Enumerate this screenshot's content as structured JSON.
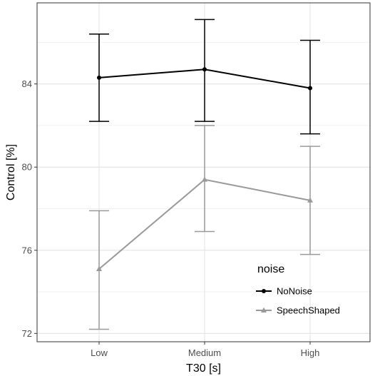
{
  "chart_data": {
    "type": "line",
    "title": "",
    "xlabel": "T30 [s]",
    "ylabel": "Control [%]",
    "categories": [
      "Low",
      "Medium",
      "High"
    ],
    "ylim": [
      71.6,
      87.9
    ],
    "yticks": [
      72,
      76,
      80,
      84
    ],
    "grid": true,
    "legend": {
      "title": "noise",
      "position": "inside-bottom-right"
    },
    "series": [
      {
        "name": "NoNoise",
        "color": "#000000",
        "marker": "circle",
        "values": [
          84.3,
          84.7,
          83.8
        ],
        "lower": [
          82.2,
          82.2,
          81.6
        ],
        "upper": [
          86.4,
          87.1,
          86.1
        ]
      },
      {
        "name": "SpeechShaped",
        "color": "#999999",
        "marker": "triangle",
        "values": [
          75.1,
          79.4,
          78.4
        ],
        "lower": [
          72.2,
          76.9,
          75.8
        ],
        "upper": [
          77.9,
          82.0,
          81.0
        ]
      }
    ]
  }
}
